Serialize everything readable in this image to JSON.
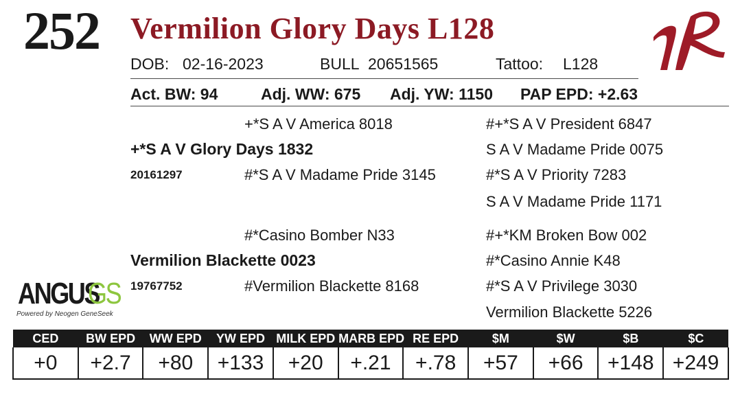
{
  "lot_number": "252",
  "animal_name": "Vermilion Glory Days L128",
  "details": {
    "dob_label": "DOB:",
    "dob": "02-16-2023",
    "sex": "BULL",
    "registration": "20651565",
    "tattoo_label": "Tattoo:",
    "tattoo": "L128"
  },
  "performance": {
    "act_bw": "Act. BW: 94",
    "adj_ww": "Adj. WW: 675",
    "adj_yw": "Adj. YW: 1150",
    "pap_epd": "PAP EPD: +2.63"
  },
  "pedigree": {
    "sire": "+*S A V Glory Days 1832",
    "sire_reg": "20161297",
    "sire_sire": "+*S A V America 8018",
    "sire_dam": "#*S A V Madame Pride 3145",
    "sire_sire_sire": "#+*S A V President 6847",
    "sire_sire_dam": "S A V Madame Pride 0075",
    "sire_dam_sire": "#*S A V Priority 7283",
    "sire_dam_dam": "S A V Madame Pride 1171",
    "dam": "Vermilion Blackette 0023",
    "dam_reg": "19767752",
    "dam_sire": "#*Casino Bomber N33",
    "dam_dam": "#Vermilion Blackette 8168",
    "dam_sire_sire": "#+*KM Broken Bow 002",
    "dam_sire_dam": "#*Casino Annie K48",
    "dam_dam_sire": "#*S A V Privilege 3030",
    "dam_dam_dam": "Vermilion Blackette 5226"
  },
  "logo": {
    "angus": "ANGUS",
    "gs": "GS",
    "powered_by": "Powered by Neogen GeneSeek"
  },
  "epd_table": {
    "headers": [
      "CED",
      "BW EPD",
      "WW EPD",
      "YW EPD",
      "MILK EPD",
      "MARB EPD",
      "RE EPD",
      "$M",
      "$W",
      "$B",
      "$C"
    ],
    "values": [
      "+0",
      "+2.7",
      "+80",
      "+133",
      "+20",
      "+.21",
      "+.78",
      "+57",
      "+66",
      "+148",
      "+249"
    ]
  },
  "colors": {
    "name_red": "#8c1a24",
    "logo_red": "#9e1b27",
    "gs_green": "#8dc63f",
    "header_bg": "#1a1a1a"
  }
}
